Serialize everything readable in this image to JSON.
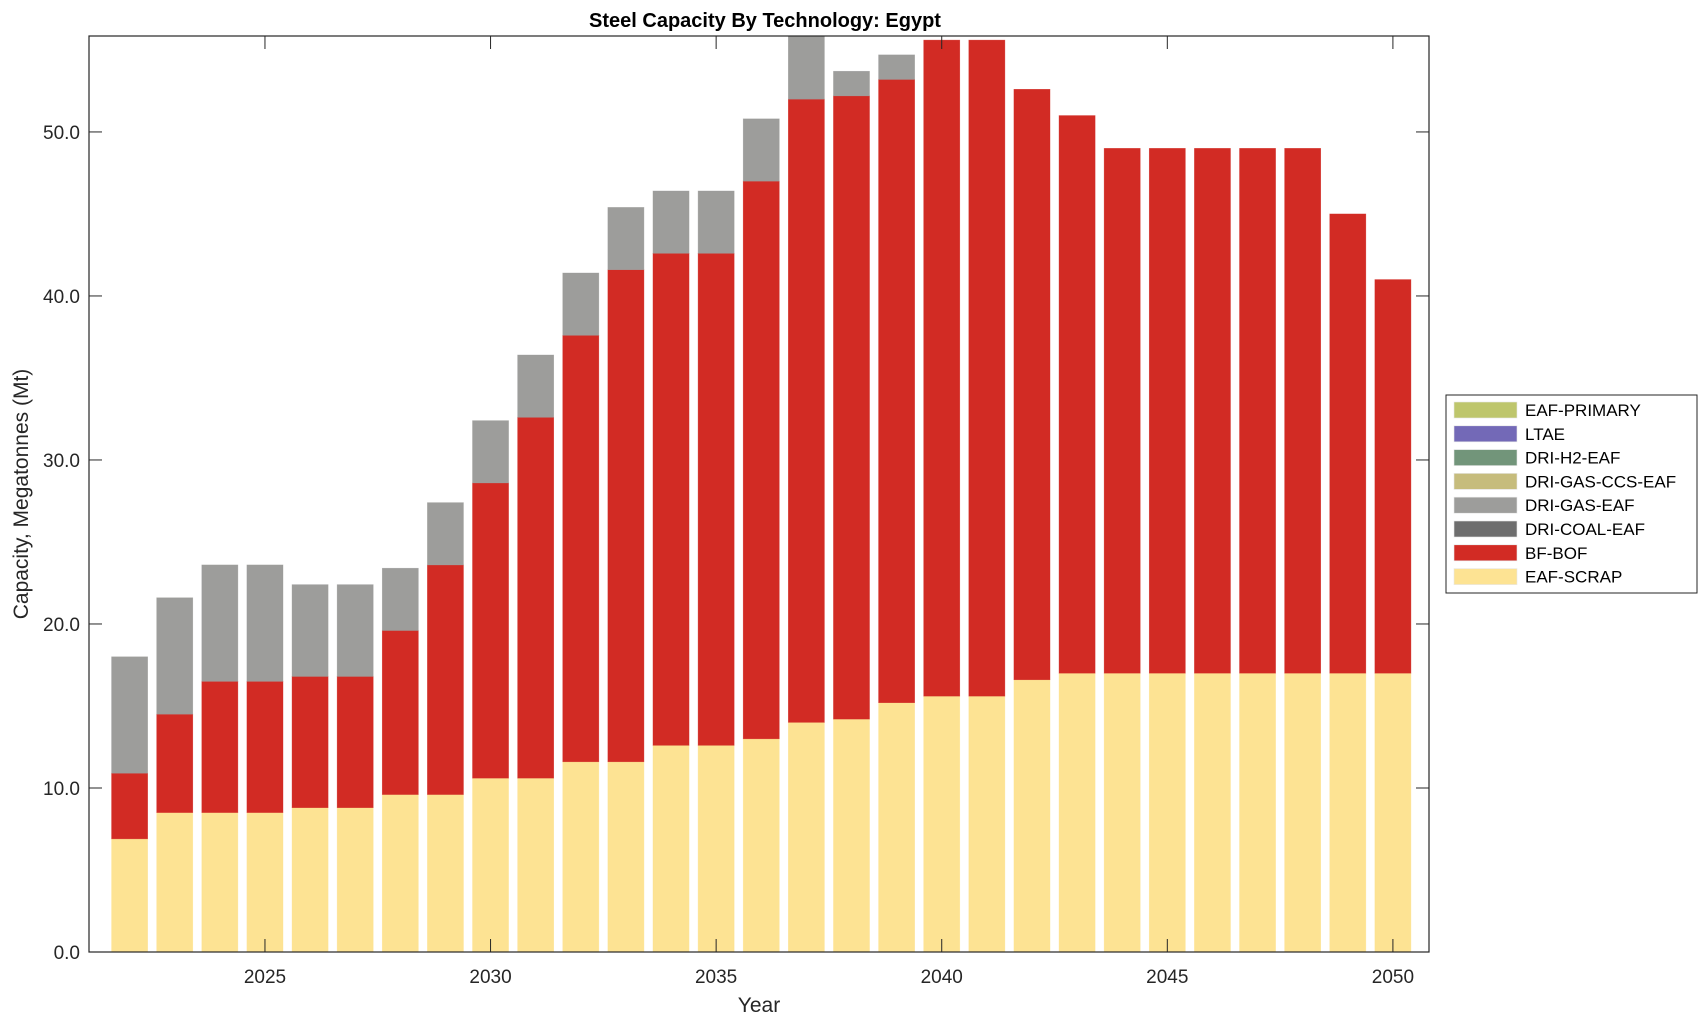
{
  "chart_data": {
    "type": "bar",
    "stacked": true,
    "title": "Steel Capacity By Technology: Egypt",
    "xlabel": "Year",
    "ylabel": "Capacity, Megatonnes (Mt)",
    "xlim": [
      2021.1,
      2050.8
    ],
    "ylim": [
      0,
      55.85
    ],
    "xticks": [
      2025,
      2030,
      2035,
      2040,
      2045,
      2050
    ],
    "xtick_labels": [
      "2025",
      "2030",
      "2035",
      "2040",
      "2045",
      "2050"
    ],
    "yticks": [
      0,
      10,
      20,
      30,
      40,
      50
    ],
    "ytick_labels": [
      "0.0",
      "10.0",
      "20.0",
      "30.0",
      "40.0",
      "50.0"
    ],
    "grid": false,
    "legend_position": "right",
    "categories": [
      2022,
      2023,
      2024,
      2025,
      2026,
      2027,
      2028,
      2029,
      2030,
      2031,
      2032,
      2033,
      2034,
      2035,
      2036,
      2037,
      2038,
      2039,
      2040,
      2041,
      2042,
      2043,
      2044,
      2045,
      2046,
      2047,
      2048,
      2049,
      2050
    ],
    "series": [
      {
        "name": "EAF-SCRAP",
        "color": "#FDE393",
        "values": [
          6.9,
          8.5,
          8.5,
          8.5,
          8.8,
          8.8,
          9.6,
          9.6,
          10.6,
          10.6,
          11.6,
          11.6,
          12.6,
          12.6,
          13.0,
          14.0,
          14.2,
          15.2,
          15.6,
          15.6,
          16.6,
          17.0,
          17.0,
          17.0,
          17.0,
          17.0,
          17.0,
          17.0,
          17.0
        ]
      },
      {
        "name": "BF-BOF",
        "color": "#D22B24",
        "values": [
          4.0,
          6.0,
          8.0,
          8.0,
          8.0,
          8.0,
          10.0,
          14.0,
          18.0,
          22.0,
          26.0,
          30.0,
          30.0,
          30.0,
          34.0,
          38.0,
          38.0,
          38.0,
          40.0,
          40.0,
          36.0,
          34.0,
          32.0,
          32.0,
          32.0,
          32.0,
          32.0,
          28.0,
          24.0
        ]
      },
      {
        "name": "DRI-COAL-EAF",
        "color": "#6E6E6E",
        "values": [
          0,
          0,
          0,
          0,
          0,
          0,
          0,
          0,
          0,
          0,
          0,
          0,
          0,
          0,
          0,
          0,
          0,
          0,
          0,
          0,
          0,
          0,
          0,
          0,
          0,
          0,
          0,
          0,
          0
        ]
      },
      {
        "name": "DRI-GAS-EAF",
        "color": "#9D9D9B",
        "values": [
          7.1,
          7.1,
          7.1,
          7.1,
          5.6,
          5.6,
          3.8,
          3.8,
          3.8,
          3.8,
          3.8,
          3.8,
          3.8,
          3.8,
          3.8,
          4.2,
          1.5,
          1.5,
          0,
          0,
          0,
          0,
          0,
          0,
          0,
          0,
          0,
          0,
          0
        ]
      },
      {
        "name": "DRI-GAS-CCS-EAF",
        "color": "#C6BC7C",
        "values": [
          0,
          0,
          0,
          0,
          0,
          0,
          0,
          0,
          0,
          0,
          0,
          0,
          0,
          0,
          0,
          0,
          0,
          0,
          0,
          0,
          0,
          0,
          0,
          0,
          0,
          0,
          0,
          0,
          0
        ]
      },
      {
        "name": "DRI-H2-EAF",
        "color": "#72957A",
        "values": [
          0,
          0,
          0,
          0,
          0,
          0,
          0,
          0,
          0,
          0,
          0,
          0,
          0,
          0,
          0,
          0,
          0,
          0,
          0,
          0,
          0,
          0,
          0,
          0,
          0,
          0,
          0,
          0,
          0
        ]
      },
      {
        "name": "LTAE",
        "color": "#7369B7",
        "values": [
          0,
          0,
          0,
          0,
          0,
          0,
          0,
          0,
          0,
          0,
          0,
          0,
          0,
          0,
          0,
          0,
          0,
          0,
          0,
          0,
          0,
          0,
          0,
          0,
          0,
          0,
          0,
          0,
          0
        ]
      },
      {
        "name": "EAF-PRIMARY",
        "color": "#BEC66C",
        "values": [
          0,
          0,
          0,
          0,
          0,
          0,
          0,
          0,
          0,
          0,
          0,
          0,
          0,
          0,
          0,
          0,
          0,
          0,
          0,
          0,
          0,
          0,
          0,
          0,
          0,
          0,
          0,
          0,
          0
        ]
      }
    ],
    "legend": [
      {
        "label": "EAF-PRIMARY",
        "color": "#BEC66C"
      },
      {
        "label": "LTAE",
        "color": "#7369B7"
      },
      {
        "label": "DRI-H2-EAF",
        "color": "#72957A"
      },
      {
        "label": "DRI-GAS-CCS-EAF",
        "color": "#C6BC7C"
      },
      {
        "label": "DRI-GAS-EAF",
        "color": "#9D9D9B"
      },
      {
        "label": "DRI-COAL-EAF",
        "color": "#6E6E6E"
      },
      {
        "label": "BF-BOF",
        "color": "#D22B24"
      },
      {
        "label": "EAF-SCRAP",
        "color": "#FDE393"
      }
    ]
  }
}
